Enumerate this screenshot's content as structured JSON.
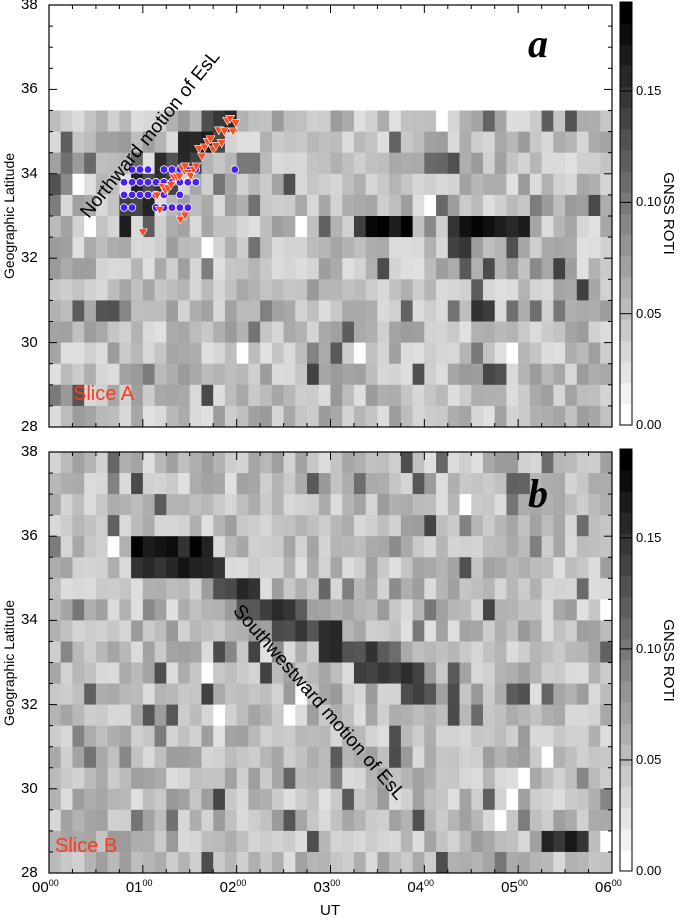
{
  "chart_data": [
    {
      "panel_label": "a",
      "type": "heatmap",
      "title": "",
      "xlabel": "",
      "ylabel": "Geographic Latitude",
      "xlim": [
        0,
        6
      ],
      "ylim": [
        28,
        38
      ],
      "yticks": [
        "28",
        "30",
        "32",
        "34",
        "36",
        "38"
      ],
      "colorbar": {
        "label": "GNSS ROTI",
        "ticks": [
          "0.00",
          "0.05",
          "0.10",
          "0.15"
        ],
        "range": [
          0,
          0.19
        ]
      },
      "annotation": "Northward motion of EsL",
      "slice_label": "Slice A",
      "data_coverage_lat": [
        28,
        35.5
      ],
      "strong_features": [
        {
          "desc": "EsL band rising from ~33.5N at 01:00 to ~35.3N at 02:00",
          "roti": 0.19
        },
        {
          "desc": "Dark patch ~32.8N from 03:15 to 03:55 UT",
          "roti": 0.19
        },
        {
          "desc": "Dark patch ~32.8N from 04:20 to 05:10 UT",
          "roti": 0.19
        },
        {
          "desc": "Dark streak descending to ~31N near 04:30-04:40 UT",
          "roti": 0.17
        }
      ],
      "overlay_series": [
        {
          "name": "blue circles (EsL points)",
          "color": "#4a1ff0",
          "marker": "circle",
          "time_range_ut": [
            0.75,
            2.0
          ],
          "lat_range": [
            33.0,
            34.2
          ]
        },
        {
          "name": "red triangles (EsL front)",
          "color": "#ff4a1a",
          "marker": "triangle-down",
          "time_range_ut": [
            1.0,
            2.0
          ],
          "lat_range": [
            32.6,
            35.3
          ]
        }
      ]
    },
    {
      "panel_label": "b",
      "type": "heatmap",
      "xlabel": "UT",
      "ylabel": "Geographic Latitude",
      "xlim": [
        0,
        6
      ],
      "ylim": [
        28,
        38
      ],
      "xticks": [
        "00",
        "01",
        "02",
        "03",
        "04",
        "05",
        "06"
      ],
      "xtick_sup": "00",
      "yticks": [
        "28",
        "30",
        "32",
        "34",
        "36",
        "38"
      ],
      "colorbar": {
        "label": "GNSS ROTI",
        "ticks": [
          "0.00",
          "0.05",
          "0.10",
          "0.15"
        ],
        "range": [
          0,
          0.19
        ]
      },
      "annotation": "Southwestward motion of EsL",
      "slice_label": "Slice B",
      "strong_features": [
        {
          "desc": "Dark patch ~35.5N at 01:00-01:45 UT",
          "roti": 0.19
        },
        {
          "desc": "Band descending from ~35N at 01:45 to ~32.5N at 04:00",
          "roti": 0.17
        },
        {
          "desc": "Dark patch ~28.7N at 05:30-05:45 UT",
          "roti": 0.19
        }
      ]
    }
  ],
  "labels": {
    "panel_a": "a",
    "panel_b": "b",
    "ylabel": "Geographic Latitude",
    "xlabel": "UT",
    "cbar_label": "GNSS ROTI",
    "annot_a": "Northward motion of EsL",
    "annot_b": "Southwestward motion of EsL",
    "slice_a": "Slice A",
    "slice_b": "Slice B",
    "yticks": [
      "38",
      "36",
      "34",
      "32",
      "30",
      "28"
    ],
    "xticks": [
      "00",
      "01",
      "02",
      "03",
      "04",
      "05",
      "06"
    ],
    "xsup": "00",
    "cticks": [
      "0.15",
      "0.10",
      "0.05",
      "0.00"
    ]
  },
  "colors": {
    "slice": "#ff3a1a",
    "circle": "#4a1ff0",
    "triangle": "#ff4a1a"
  }
}
